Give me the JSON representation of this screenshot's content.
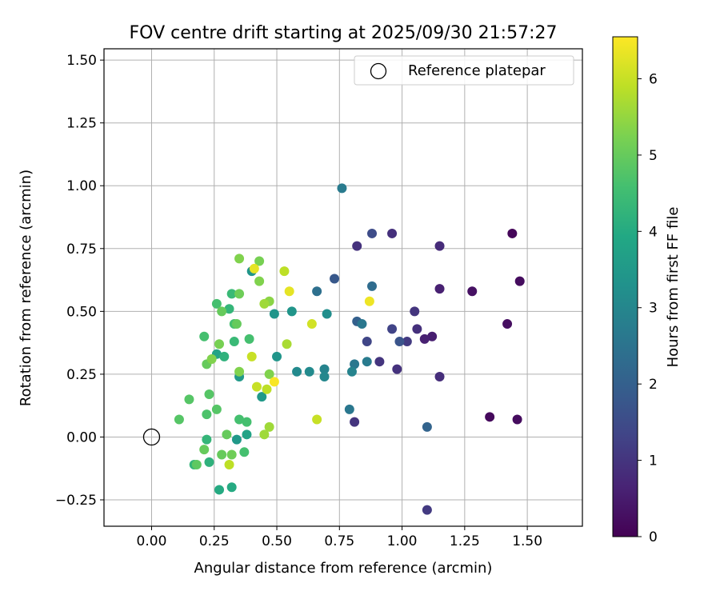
{
  "chart_data": {
    "type": "scatter",
    "title": "FOV centre drift starting at 2025/09/30 21:57:27",
    "xlabel": "Angular distance from reference (arcmin)",
    "ylabel": "Rotation from reference (arcmin)",
    "xlim": [
      -0.19,
      1.72
    ],
    "ylim": [
      -0.355,
      1.545
    ],
    "xticks": [
      0.0,
      0.25,
      0.5,
      0.75,
      1.0,
      1.25,
      1.5
    ],
    "xtick_labels": [
      "0.00",
      "0.25",
      "0.50",
      "0.75",
      "1.00",
      "1.25",
      "1.50"
    ],
    "yticks": [
      -0.25,
      0.0,
      0.25,
      0.5,
      0.75,
      1.0,
      1.25,
      1.5
    ],
    "ytick_labels": [
      "−0.25",
      "0.00",
      "0.25",
      "0.50",
      "0.75",
      "1.00",
      "1.25",
      "1.50"
    ],
    "grid": true,
    "legend": {
      "label": "Reference platepar",
      "placement": "top-right"
    },
    "reference_point": {
      "x": 0.0,
      "y": 0.0
    },
    "colorbar": {
      "label": "Hours from first FF file",
      "colormap": "viridis",
      "range": [
        0,
        6.55
      ],
      "ticks": [
        0,
        1,
        2,
        3,
        4,
        5,
        6
      ],
      "tick_labels": [
        "0",
        "1",
        "2",
        "3",
        "4",
        "5",
        "6"
      ]
    },
    "points": [
      {
        "x": 1.44,
        "y": 0.81,
        "c": 0.1
      },
      {
        "x": 1.47,
        "y": 0.62,
        "c": 0.2
      },
      {
        "x": 1.28,
        "y": 0.58,
        "c": 0.3
      },
      {
        "x": 1.42,
        "y": 0.45,
        "c": 0.25
      },
      {
        "x": 1.35,
        "y": 0.08,
        "c": 0.15
      },
      {
        "x": 1.46,
        "y": 0.07,
        "c": 0.2
      },
      {
        "x": 1.15,
        "y": 0.76,
        "c": 0.8
      },
      {
        "x": 1.15,
        "y": 0.59,
        "c": 0.6
      },
      {
        "x": 1.12,
        "y": 0.4,
        "c": 0.55
      },
      {
        "x": 1.09,
        "y": 0.39,
        "c": 0.6
      },
      {
        "x": 1.15,
        "y": 0.24,
        "c": 0.85
      },
      {
        "x": 1.06,
        "y": 0.43,
        "c": 0.9
      },
      {
        "x": 1.05,
        "y": 0.5,
        "c": 1.0
      },
      {
        "x": 0.96,
        "y": 0.81,
        "c": 0.9
      },
      {
        "x": 0.82,
        "y": 0.76,
        "c": 0.95
      },
      {
        "x": 1.02,
        "y": 0.38,
        "c": 1.1
      },
      {
        "x": 0.98,
        "y": 0.27,
        "c": 0.95
      },
      {
        "x": 0.91,
        "y": 0.3,
        "c": 1.0
      },
      {
        "x": 0.81,
        "y": 0.06,
        "c": 1.0
      },
      {
        "x": 1.1,
        "y": -0.29,
        "c": 1.1
      },
      {
        "x": 0.96,
        "y": 0.43,
        "c": 1.3
      },
      {
        "x": 0.86,
        "y": 0.38,
        "c": 1.35
      },
      {
        "x": 0.99,
        "y": 0.38,
        "c": 1.7
      },
      {
        "x": 0.88,
        "y": 0.81,
        "c": 1.5
      },
      {
        "x": 0.73,
        "y": 0.63,
        "c": 1.8
      },
      {
        "x": 0.82,
        "y": 0.46,
        "c": 2.0
      },
      {
        "x": 1.1,
        "y": 0.04,
        "c": 2.1
      },
      {
        "x": 0.88,
        "y": 0.6,
        "c": 2.3
      },
      {
        "x": 0.66,
        "y": 0.58,
        "c": 2.4
      },
      {
        "x": 0.84,
        "y": 0.45,
        "c": 2.6
      },
      {
        "x": 0.81,
        "y": 0.29,
        "c": 2.6
      },
      {
        "x": 0.86,
        "y": 0.3,
        "c": 2.7
      },
      {
        "x": 0.76,
        "y": 0.99,
        "c": 2.7
      },
      {
        "x": 0.79,
        "y": 0.11,
        "c": 2.6
      },
      {
        "x": 0.8,
        "y": 0.26,
        "c": 2.9
      },
      {
        "x": 0.69,
        "y": 0.27,
        "c": 2.9
      },
      {
        "x": 0.69,
        "y": 0.24,
        "c": 3.0
      },
      {
        "x": 0.63,
        "y": 0.26,
        "c": 3.1
      },
      {
        "x": 0.58,
        "y": 0.26,
        "c": 3.1
      },
      {
        "x": 0.7,
        "y": 0.49,
        "c": 3.2
      },
      {
        "x": 0.56,
        "y": 0.5,
        "c": 3.4
      },
      {
        "x": 0.5,
        "y": 0.32,
        "c": 3.4
      },
      {
        "x": 0.49,
        "y": 0.49,
        "c": 3.4
      },
      {
        "x": 0.44,
        "y": 0.16,
        "c": 3.5
      },
      {
        "x": 0.4,
        "y": 0.66,
        "c": 3.4
      },
      {
        "x": 0.35,
        "y": 0.24,
        "c": 3.5
      },
      {
        "x": 0.34,
        "y": -0.01,
        "c": 3.5
      },
      {
        "x": 0.38,
        "y": 0.01,
        "c": 3.8
      },
      {
        "x": 0.26,
        "y": 0.33,
        "c": 3.8
      },
      {
        "x": 0.27,
        "y": -0.21,
        "c": 4.0
      },
      {
        "x": 0.32,
        "y": -0.2,
        "c": 4.0
      },
      {
        "x": 0.23,
        "y": -0.1,
        "c": 4.2
      },
      {
        "x": 0.22,
        "y": -0.01,
        "c": 4.3
      },
      {
        "x": 0.17,
        "y": -0.11,
        "c": 4.3
      },
      {
        "x": 0.31,
        "y": 0.51,
        "c": 4.3
      },
      {
        "x": 0.29,
        "y": 0.32,
        "c": 4.2
      },
      {
        "x": 0.32,
        "y": 0.57,
        "c": 4.4
      },
      {
        "x": 0.33,
        "y": 0.38,
        "c": 4.4
      },
      {
        "x": 0.39,
        "y": 0.39,
        "c": 4.6
      },
      {
        "x": 0.38,
        "y": 0.06,
        "c": 4.6
      },
      {
        "x": 0.35,
        "y": 0.07,
        "c": 4.6
      },
      {
        "x": 0.37,
        "y": -0.06,
        "c": 4.6
      },
      {
        "x": 0.33,
        "y": 0.45,
        "c": 4.6
      },
      {
        "x": 0.26,
        "y": 0.53,
        "c": 4.6
      },
      {
        "x": 0.21,
        "y": 0.4,
        "c": 4.6
      },
      {
        "x": 0.22,
        "y": 0.09,
        "c": 4.7
      },
      {
        "x": 0.26,
        "y": 0.11,
        "c": 4.8
      },
      {
        "x": 0.23,
        "y": 0.17,
        "c": 4.8
      },
      {
        "x": 0.15,
        "y": 0.15,
        "c": 4.8
      },
      {
        "x": 0.11,
        "y": 0.07,
        "c": 4.8
      },
      {
        "x": 0.18,
        "y": -0.11,
        "c": 4.9
      },
      {
        "x": 0.21,
        "y": -0.05,
        "c": 5.0
      },
      {
        "x": 0.28,
        "y": -0.07,
        "c": 5.0
      },
      {
        "x": 0.32,
        "y": -0.07,
        "c": 5.1
      },
      {
        "x": 0.3,
        "y": 0.01,
        "c": 5.0
      },
      {
        "x": 0.34,
        "y": 0.45,
        "c": 5.0
      },
      {
        "x": 0.28,
        "y": 0.5,
        "c": 5.0
      },
      {
        "x": 0.22,
        "y": 0.29,
        "c": 5.0
      },
      {
        "x": 0.27,
        "y": 0.37,
        "c": 5.2
      },
      {
        "x": 0.35,
        "y": 0.57,
        "c": 5.1
      },
      {
        "x": 0.43,
        "y": 0.7,
        "c": 5.2
      },
      {
        "x": 0.35,
        "y": 0.71,
        "c": 5.3
      },
      {
        "x": 0.43,
        "y": 0.62,
        "c": 5.3
      },
      {
        "x": 0.47,
        "y": 0.25,
        "c": 5.3
      },
      {
        "x": 0.35,
        "y": 0.26,
        "c": 5.3
      },
      {
        "x": 0.24,
        "y": 0.31,
        "c": 5.3
      },
      {
        "x": 0.47,
        "y": 0.54,
        "c": 5.4
      },
      {
        "x": 0.45,
        "y": 0.53,
        "c": 5.6
      },
      {
        "x": 0.45,
        "y": 0.01,
        "c": 5.6
      },
      {
        "x": 0.47,
        "y": 0.04,
        "c": 5.6
      },
      {
        "x": 0.54,
        "y": 0.37,
        "c": 5.7
      },
      {
        "x": 0.53,
        "y": 0.66,
        "c": 5.9
      },
      {
        "x": 0.46,
        "y": 0.19,
        "c": 5.9
      },
      {
        "x": 0.42,
        "y": 0.2,
        "c": 6.0
      },
      {
        "x": 0.4,
        "y": 0.32,
        "c": 6.0
      },
      {
        "x": 0.31,
        "y": -0.11,
        "c": 5.9
      },
      {
        "x": 0.64,
        "y": 0.45,
        "c": 6.1
      },
      {
        "x": 0.66,
        "y": 0.07,
        "c": 6.0
      },
      {
        "x": 0.41,
        "y": 0.67,
        "c": 6.3
      },
      {
        "x": 0.55,
        "y": 0.58,
        "c": 6.3
      },
      {
        "x": 0.87,
        "y": 0.54,
        "c": 6.4
      },
      {
        "x": 0.49,
        "y": 0.22,
        "c": 6.5
      }
    ]
  }
}
